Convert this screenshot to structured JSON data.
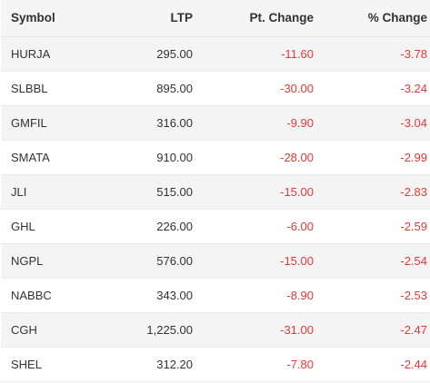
{
  "table": {
    "headers": {
      "symbol": "Symbol",
      "ltp": "LTP",
      "pt_change": "Pt. Change",
      "pct_change": "% Change"
    },
    "rows": [
      {
        "symbol": "HURJA",
        "ltp": "295.00",
        "pt_change": "-11.60",
        "pct_change": "-3.78"
      },
      {
        "symbol": "SLBBL",
        "ltp": "895.00",
        "pt_change": "-30.00",
        "pct_change": "-3.24"
      },
      {
        "symbol": "GMFIL",
        "ltp": "316.00",
        "pt_change": "-9.90",
        "pct_change": "-3.04"
      },
      {
        "symbol": "SMATA",
        "ltp": "910.00",
        "pt_change": "-28.00",
        "pct_change": "-2.99"
      },
      {
        "symbol": "JLI",
        "ltp": "515.00",
        "pt_change": "-15.00",
        "pct_change": "-2.83"
      },
      {
        "symbol": "GHL",
        "ltp": "226.00",
        "pt_change": "-6.00",
        "pct_change": "-2.59"
      },
      {
        "symbol": "NGPL",
        "ltp": "576.00",
        "pt_change": "-15.00",
        "pct_change": "-2.54"
      },
      {
        "symbol": "NABBC",
        "ltp": "343.00",
        "pt_change": "-8.90",
        "pct_change": "-2.53"
      },
      {
        "symbol": "CGH",
        "ltp": "1,225.00",
        "pt_change": "-31.00",
        "pct_change": "-2.47"
      },
      {
        "symbol": "SHEL",
        "ltp": "312.20",
        "pt_change": "-7.80",
        "pct_change": "-2.44"
      }
    ]
  },
  "colors": {
    "negative": "#e53935",
    "header_bg": "#f5f5f5",
    "stripe_bg": "#f4f4f4"
  }
}
